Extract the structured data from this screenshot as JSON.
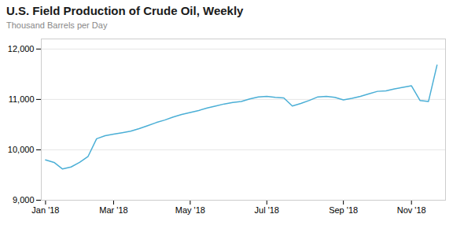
{
  "chart_data": {
    "type": "line",
    "title": "U.S. Field Production of Crude Oil, Weekly",
    "subtitle": "Thousand Barrels per Day",
    "color": "#4BAFD6",
    "x": [
      0,
      1,
      2,
      3,
      4,
      5,
      6,
      7,
      8,
      9,
      10,
      11,
      12,
      13,
      14,
      15,
      16,
      17,
      18,
      19,
      20,
      21,
      22,
      23,
      24,
      25,
      26,
      27,
      28,
      29,
      30,
      31,
      32,
      33,
      34,
      35,
      36,
      37,
      38,
      39,
      40,
      41,
      42,
      43,
      44,
      45,
      46
    ],
    "values": [
      9800,
      9750,
      9620,
      9660,
      9750,
      9870,
      10220,
      10280,
      10310,
      10340,
      10370,
      10420,
      10480,
      10540,
      10590,
      10650,
      10700,
      10740,
      10780,
      10830,
      10870,
      10910,
      10940,
      10960,
      11010,
      11050,
      11060,
      11040,
      11030,
      10870,
      10920,
      10980,
      11050,
      11060,
      11040,
      10990,
      11020,
      11060,
      11110,
      11160,
      11170,
      11210,
      11240,
      11270,
      10980,
      10960,
      11680
    ],
    "xlim": [
      -0.5,
      47
    ],
    "xticks": [
      {
        "value": 0,
        "label": "Jan '18"
      },
      {
        "value": 8,
        "label": "Mar '18"
      },
      {
        "value": 17,
        "label": "May '18"
      },
      {
        "value": 26,
        "label": "Jul '18"
      },
      {
        "value": 35,
        "label": "Sep '18"
      },
      {
        "value": 43,
        "label": "Nov '18"
      }
    ],
    "ylim": [
      9000,
      12200
    ],
    "yticks": [
      {
        "value": 9000,
        "label": "9,000"
      },
      {
        "value": 10000,
        "label": "10,000"
      },
      {
        "value": 11000,
        "label": "11,000"
      },
      {
        "value": 12000,
        "label": "12,000"
      }
    ],
    "grid": "y"
  }
}
